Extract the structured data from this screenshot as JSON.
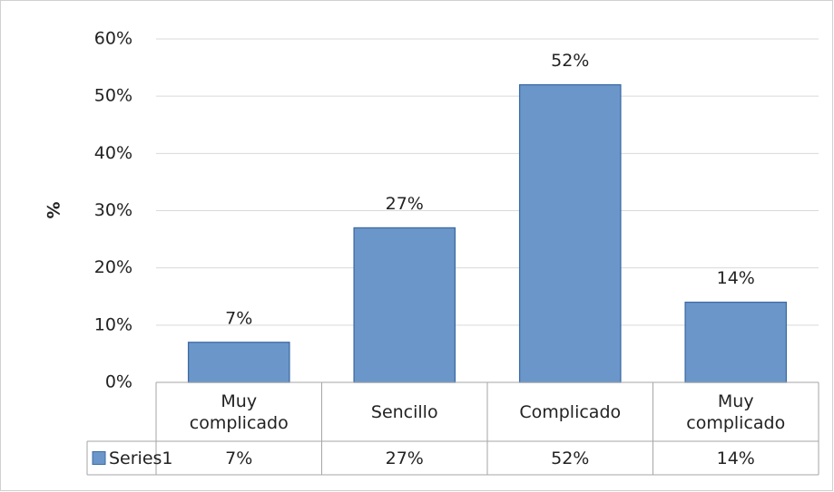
{
  "chart_data": {
    "type": "bar",
    "y_label": "%",
    "categories": [
      "Muy complicado",
      "Sencillo",
      "Complicado",
      "Muy complicado"
    ],
    "series": [
      {
        "name": "Series1",
        "color": "#6b96ca",
        "values": [
          7,
          27,
          52,
          14
        ],
        "value_labels": [
          "7%",
          "27%",
          "52%",
          "14%"
        ]
      }
    ],
    "ylim": [
      0,
      60
    ],
    "yticks": [
      {
        "value": 0,
        "label": "0%"
      },
      {
        "value": 10,
        "label": "10%"
      },
      {
        "value": 20,
        "label": "20%"
      },
      {
        "value": 30,
        "label": "30%"
      },
      {
        "value": 40,
        "label": "40%"
      },
      {
        "value": 50,
        "label": "50%"
      },
      {
        "value": 60,
        "label": "60%"
      }
    ],
    "grid": true,
    "data_table": true
  }
}
